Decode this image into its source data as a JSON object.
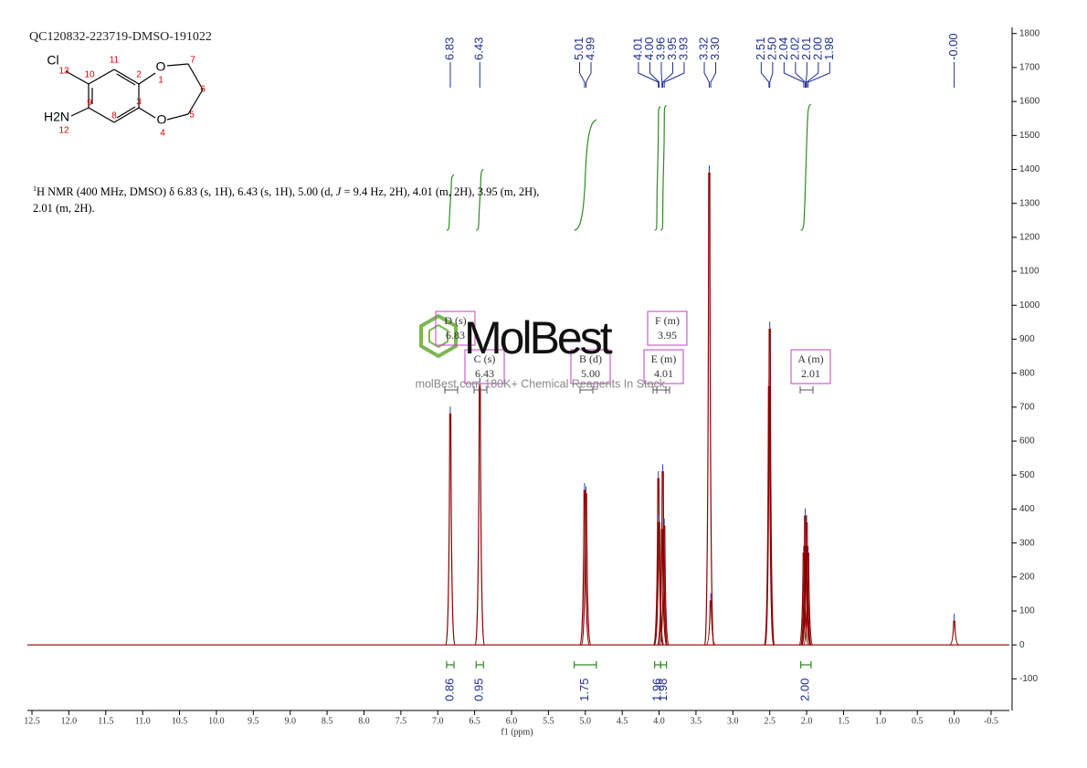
{
  "chart_data": {
    "type": "spectrum",
    "title": "QC120832-223719-DMSO-191022",
    "x_label": "f1 (ppm)",
    "xlim": [
      12.5,
      -0.5
    ],
    "xticks": [
      12.5,
      {
        "value": 12,
        "label": "12.0"
      },
      11.5,
      {
        "value": 11,
        "label": "11.0"
      },
      10.5,
      {
        "value": 10,
        "label": "10.0"
      },
      9.5,
      {
        "value": 9,
        "label": "9.0"
      },
      8.5,
      {
        "value": 8,
        "label": "8.0"
      },
      7.5,
      {
        "value": 7,
        "label": "7.0"
      },
      6.5,
      {
        "value": 6,
        "label": "6.0"
      },
      5.5,
      {
        "value": 5,
        "label": "5.0"
      },
      4.5,
      {
        "value": 4,
        "label": "4.0"
      },
      3.5,
      {
        "value": 3,
        "label": "3.0"
      },
      2.5,
      {
        "value": 2,
        "label": "2.0"
      },
      1.5,
      {
        "value": 1,
        "label": "1.0"
      },
      0.5,
      {
        "value": 0,
        "label": "0.0"
      },
      -0.5
    ],
    "ylim": [
      -185,
      1810
    ],
    "yticks": [
      -100,
      0,
      100,
      200,
      300,
      400,
      500,
      600,
      700,
      800,
      900,
      1000,
      1100,
      1200,
      1300,
      1400,
      1500,
      1600,
      1700,
      1800
    ],
    "series": [
      {
        "color": "#8b0000",
        "x": [
          6.83,
          6.43,
          5.01,
          4.99,
          4.01,
          4.0,
          3.96,
          3.95,
          3.93,
          3.32,
          3.3,
          2.51,
          2.5,
          2.04,
          2.02,
          2.01,
          2.0,
          1.98,
          0
        ],
        "values": [
          680,
          765,
          455,
          445,
          490,
          360,
          340,
          510,
          350,
          1390,
          130,
          760,
          930,
          270,
          380,
          290,
          360,
          270,
          70
        ]
      }
    ],
    "peak_picks": [
      {
        "value": 6.83,
        "label": "6.83"
      },
      {
        "value": 6.43,
        "label": "6.43"
      },
      {
        "value": 5.01,
        "label": "5.01"
      },
      {
        "value": 4.99,
        "label": "4.99"
      },
      {
        "value": 4.01,
        "label": "4.01"
      },
      {
        "value": 4,
        "label": "4.00"
      },
      {
        "value": 3.96,
        "label": "3.96"
      },
      {
        "value": 3.95,
        "label": "3.95"
      },
      {
        "value": 3.93,
        "label": "3.93"
      },
      {
        "value": 3.32,
        "label": "3.32"
      },
      {
        "value": 3.3,
        "label": "3.30"
      },
      {
        "value": 2.51,
        "label": "2.51"
      },
      {
        "value": 2.5,
        "label": "2.50"
      },
      {
        "value": 2.04,
        "label": "2.04"
      },
      {
        "value": 2.02,
        "label": "2.02"
      },
      {
        "value": 2.01,
        "label": "2.01"
      },
      {
        "value": 2,
        "label": "2.00"
      },
      {
        "value": 1.98,
        "label": "1.98"
      },
      {
        "value": 0,
        "label": "-0.00"
      }
    ],
    "peak_color": "#1f2f8f",
    "integrals": {
      "color": "#2e8b22",
      "ranges": [
        [
          6.88,
          6.78
        ],
        [
          6.48,
          6.38
        ],
        [
          5.15,
          4.85
        ],
        [
          4.06,
          3.98
        ],
        [
          3.98,
          3.9
        ],
        [
          2.08,
          1.94
        ]
      ],
      "values": [
        0.86,
        0.95,
        1.75,
        1.96,
        1.98,
        2
      ],
      "value_labels": [
        "0.86",
        "0.95",
        "1.75",
        "1.96",
        "1.98",
        "2.00"
      ]
    },
    "multiplets": [
      {
        "name": "D (s)",
        "shift": "6.83"
      },
      {
        "name": "C (s)",
        "shift": "6.43"
      },
      {
        "name": "B (d)",
        "shift": "5.00"
      },
      {
        "name": "F (m)",
        "shift": "3.95"
      },
      {
        "name": "E (m)",
        "shift": "4.01"
      },
      {
        "name": "A (m)",
        "shift": "2.01"
      }
    ],
    "description": [
      "1",
      "H NMR (400 MHz, DMSO) δ 6.83 (s, 1H), 6.43 (s, 1H), 5.00 (d, ",
      "J",
      " = 9.4 Hz, 2H), 4.01 (m, 2H), 3.95 (m, 2H), 2.01 (m, 2H)."
    ],
    "structure": {
      "atoms": [
        "Cl",
        "13",
        "10",
        "11",
        "2",
        "O",
        "1",
        "7",
        "6",
        "5",
        "O",
        "4",
        "3",
        "8",
        "9",
        "H2N",
        "12"
      ]
    },
    "watermark": {
      "brand": "MolBest",
      "tagline": "molBest.com 180K+ Chemical Reagents In Stock."
    }
  }
}
